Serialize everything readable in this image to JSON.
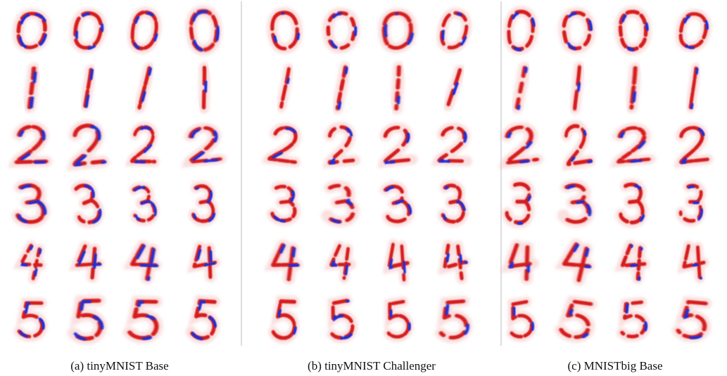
{
  "panels": [
    {
      "caption": "(a) tinyMNIST Base"
    },
    {
      "caption": "(b) tinyMNIST Challenger"
    },
    {
      "caption": "(c) MNISTbig Base"
    }
  ]
}
